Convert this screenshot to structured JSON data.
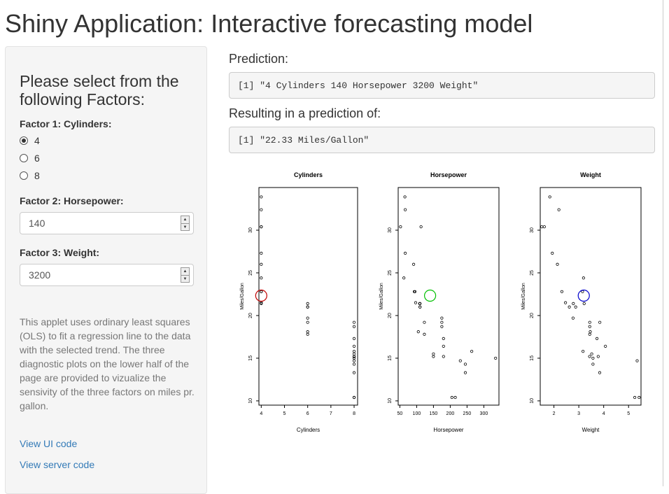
{
  "title": "Shiny Application: Interactive forecasting model",
  "sidebar": {
    "heading": "Please select from the following Factors:",
    "factor1_label": "Factor 1: Cylinders:",
    "cylinder_options": [
      "4",
      "6",
      "8"
    ],
    "cylinder_selected": "4",
    "factor2_label": "Factor 2: Horsepower:",
    "horsepower_value": "140",
    "factor3_label": "Factor 3: Weight:",
    "weight_value": "3200",
    "description": "This applet uses ordinary least squares (OLS) to fit a regression line to the data with the selected trend. The three diagnostic plots on the lower half of the page are provided to vizualize the sensivity of the three factors on miles pr. gallon.",
    "link_ui": "View UI code",
    "link_server": "View server code"
  },
  "main": {
    "prediction_label": "Prediction:",
    "prediction_output": "[1] \"4 Cylinders 140 Horsepower 3200 Weight\"",
    "result_label": "Resulting in a prediction of:",
    "result_output": "[1] \"22.33 Miles/Gallon\""
  },
  "chart_data": [
    {
      "type": "scatter",
      "title": "Cylinders",
      "xlabel": "Cylinders",
      "ylabel": "Miles/Gallon",
      "xlim": [
        3.9,
        8.15
      ],
      "ylim": [
        9.5,
        35
      ],
      "xticks": [
        4,
        5,
        6,
        7,
        8
      ],
      "yticks": [
        10,
        15,
        20,
        25,
        30
      ],
      "points": [
        [
          4,
          21.4
        ],
        [
          4,
          21.5
        ],
        [
          4,
          22.8
        ],
        [
          4,
          22.8
        ],
        [
          4,
          24.4
        ],
        [
          4,
          26.0
        ],
        [
          4,
          27.3
        ],
        [
          4,
          30.4
        ],
        [
          4,
          30.4
        ],
        [
          4,
          32.4
        ],
        [
          4,
          33.9
        ],
        [
          6,
          17.8
        ],
        [
          6,
          18.1
        ],
        [
          6,
          19.2
        ],
        [
          6,
          19.7
        ],
        [
          6,
          21.0
        ],
        [
          6,
          21.0
        ],
        [
          6,
          21.4
        ],
        [
          8,
          10.4
        ],
        [
          8,
          10.4
        ],
        [
          8,
          13.3
        ],
        [
          8,
          14.3
        ],
        [
          8,
          14.7
        ],
        [
          8,
          15.0
        ],
        [
          8,
          15.2
        ],
        [
          8,
          15.2
        ],
        [
          8,
          15.5
        ],
        [
          8,
          15.8
        ],
        [
          8,
          16.4
        ],
        [
          8,
          17.3
        ],
        [
          8,
          18.7
        ],
        [
          8,
          19.2
        ]
      ],
      "highlight": {
        "x": 4,
        "y": 22.33,
        "color": "#c00000"
      }
    },
    {
      "type": "scatter",
      "title": "Horsepower",
      "xlabel": "Horsepower",
      "ylabel": "Miles/Gallon",
      "xlim": [
        45,
        345
      ],
      "ylim": [
        9.5,
        35
      ],
      "xticks": [
        50,
        100,
        150,
        200,
        250,
        300
      ],
      "yticks": [
        10,
        15,
        20,
        25,
        30
      ],
      "points": [
        [
          110,
          21.0
        ],
        [
          110,
          21.0
        ],
        [
          93,
          22.8
        ],
        [
          110,
          21.4
        ],
        [
          175,
          18.7
        ],
        [
          105,
          18.1
        ],
        [
          245,
          14.3
        ],
        [
          62,
          24.4
        ],
        [
          95,
          22.8
        ],
        [
          123,
          19.2
        ],
        [
          123,
          17.8
        ],
        [
          180,
          16.4
        ],
        [
          180,
          17.3
        ],
        [
          180,
          15.2
        ],
        [
          205,
          10.4
        ],
        [
          215,
          10.4
        ],
        [
          230,
          14.7
        ],
        [
          66,
          32.4
        ],
        [
          52,
          30.4
        ],
        [
          65,
          33.9
        ],
        [
          97,
          21.5
        ],
        [
          150,
          15.5
        ],
        [
          150,
          15.2
        ],
        [
          245,
          13.3
        ],
        [
          175,
          19.2
        ],
        [
          66,
          27.3
        ],
        [
          91,
          26.0
        ],
        [
          113,
          30.4
        ],
        [
          264,
          15.8
        ],
        [
          175,
          19.7
        ],
        [
          335,
          15.0
        ],
        [
          109,
          21.4
        ]
      ],
      "highlight": {
        "x": 140,
        "y": 22.33,
        "color": "#00c000"
      }
    },
    {
      "type": "scatter",
      "title": "Weight",
      "xlabel": "Weight",
      "ylabel": "Miles/Gallon",
      "xlim": [
        1.45,
        5.5
      ],
      "ylim": [
        9.5,
        35
      ],
      "xticks": [
        2,
        3,
        4,
        5
      ],
      "yticks": [
        10,
        15,
        20,
        25,
        30
      ],
      "points": [
        [
          2.62,
          21.0
        ],
        [
          2.875,
          21.0
        ],
        [
          2.32,
          22.8
        ],
        [
          3.215,
          21.4
        ],
        [
          3.44,
          18.7
        ],
        [
          3.46,
          18.1
        ],
        [
          3.57,
          14.3
        ],
        [
          3.19,
          24.4
        ],
        [
          3.15,
          22.8
        ],
        [
          3.44,
          19.2
        ],
        [
          3.44,
          17.8
        ],
        [
          4.07,
          16.4
        ],
        [
          3.73,
          17.3
        ],
        [
          3.78,
          15.2
        ],
        [
          5.25,
          10.4
        ],
        [
          5.424,
          10.4
        ],
        [
          5.345,
          14.7
        ],
        [
          2.2,
          32.4
        ],
        [
          1.615,
          30.4
        ],
        [
          1.835,
          33.9
        ],
        [
          2.465,
          21.5
        ],
        [
          3.52,
          15.5
        ],
        [
          3.435,
          15.2
        ],
        [
          3.84,
          13.3
        ],
        [
          3.845,
          19.2
        ],
        [
          1.935,
          27.3
        ],
        [
          2.14,
          26.0
        ],
        [
          1.513,
          30.4
        ],
        [
          3.17,
          15.8
        ],
        [
          2.77,
          19.7
        ],
        [
          3.57,
          15.0
        ],
        [
          2.78,
          21.4
        ]
      ],
      "highlight": {
        "x": 3.2,
        "y": 22.33,
        "color": "#0000cc"
      }
    }
  ]
}
